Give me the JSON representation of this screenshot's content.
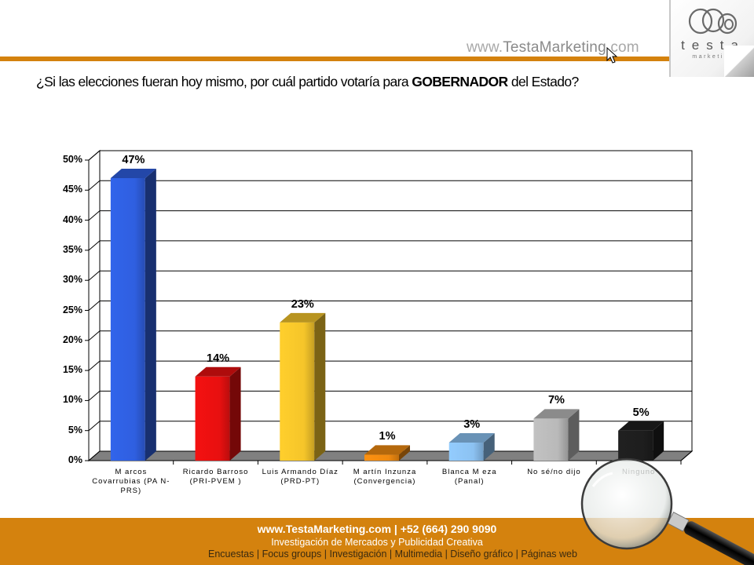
{
  "header": {
    "site_url_prefix": "www.",
    "site_url_brand": "TestaMarketing",
    "site_url_suffix": ".com",
    "logo_word": "testa",
    "logo_sub": "marketing"
  },
  "question": {
    "part1": "¿Si las elecciones fueran hoy mismo, por cuál partido votaría para ",
    "part2": "GOBERNADOR",
    "part3": " del Estado?"
  },
  "chart_data": {
    "type": "bar",
    "title": "¿Si las elecciones fueran hoy mismo, por cuál partido votaría para GOBERNADOR del Estado?",
    "categories": [
      "Marcos Covarrubias (PAN-PRS)",
      "Ricardo Barroso (PRI-PVEM)",
      "Luis Armando Díaz (PRD-PT)",
      "Martín Inzunza (Convergencia)",
      "Blanca Meza (Panal)",
      "No sé/no dijo",
      "Ninguno"
    ],
    "values": [
      47,
      14,
      23,
      1,
      3,
      7,
      5
    ],
    "value_labels": [
      "47%",
      "14%",
      "23%",
      "1%",
      "3%",
      "7%",
      "5%"
    ],
    "colors": [
      "#2f5fe0",
      "#e81010",
      "#f5c52a",
      "#f08a10",
      "#8cc2f2",
      "#b9b9b9",
      "#1e1e1e"
    ],
    "xlabel": "",
    "ylabel": "",
    "ylim": [
      0,
      50
    ],
    "yticks": [
      "0%",
      "5%",
      "10%",
      "15%",
      "20%",
      "25%",
      "30%",
      "35%",
      "40%",
      "45%",
      "50%"
    ],
    "grid": true,
    "legend": "none",
    "style": "3d-column"
  },
  "xlabels": [
    [
      "M arcos",
      "Covarrubias (PA N-",
      "PRS)"
    ],
    [
      "Ricardo Barroso",
      "(PRI-PVEM )"
    ],
    [
      "Luis Armando Díaz",
      "(PRD-PT)"
    ],
    [
      "M artín Inzunza",
      "(Convergencia)"
    ],
    [
      "Blanca M eza",
      "(Panal)"
    ],
    [
      "No sé/no dijo"
    ],
    [
      "Ninguno"
    ]
  ],
  "footer": {
    "line1": "www.TestaMarketing.com | +52 (664) 290 9090",
    "line2": "Investigación de Mercados y Publicidad Creativa",
    "line3": "Encuestas | Focus groups | Investigación | Multimedia | Diseño gráfico | Páginas web"
  }
}
